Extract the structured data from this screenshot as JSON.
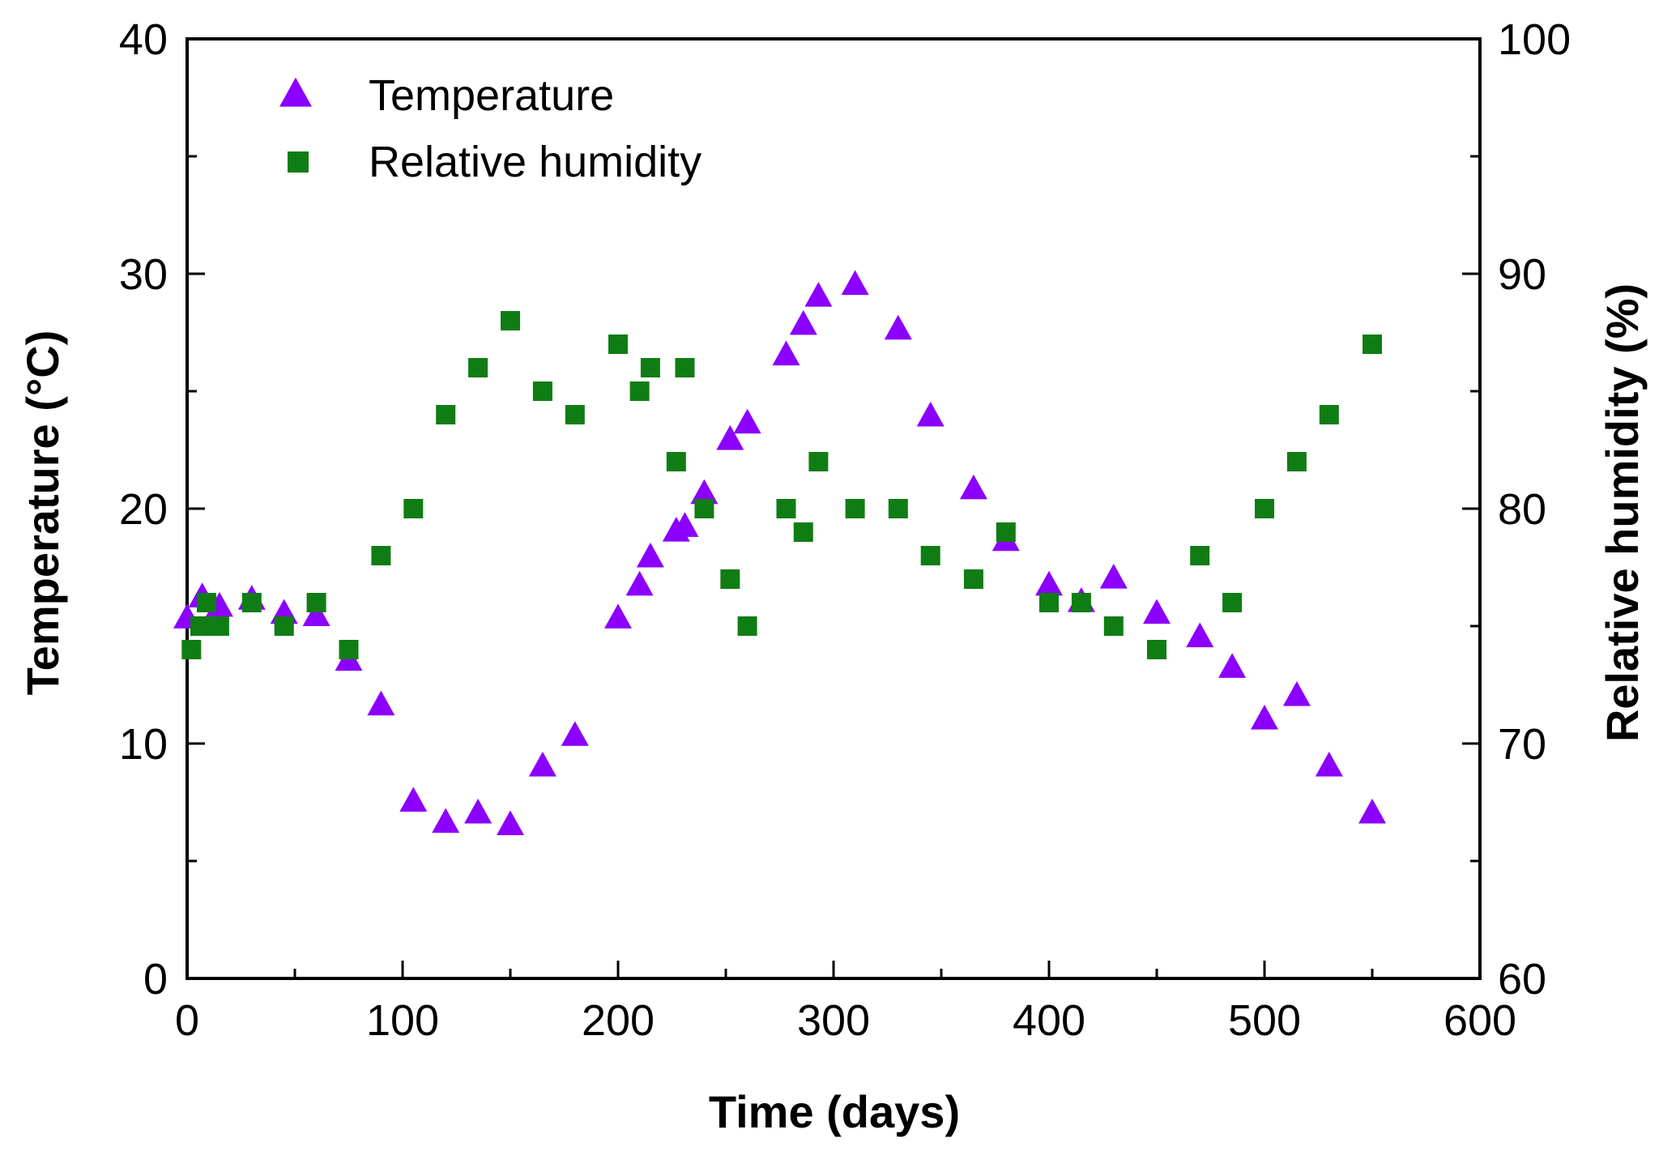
{
  "chart_data": {
    "type": "scatter",
    "title": "",
    "xlabel": "Time (days)",
    "ylabel": "Temperature (°C)",
    "y2label": "Relative humidity (%)",
    "xlim": [
      0,
      600
    ],
    "ylim": [
      0,
      40
    ],
    "y2lim": [
      60,
      100
    ],
    "x_ticks": [
      "0",
      "100",
      "200",
      "300",
      "400",
      "500",
      "600"
    ],
    "y_ticks": [
      "0",
      "10",
      "20",
      "30",
      "40"
    ],
    "y2_ticks": [
      "60",
      "70",
      "80",
      "90",
      "100"
    ],
    "grid": false,
    "legend_position": "top-left",
    "series": [
      {
        "name": "Temperature",
        "axis": "left",
        "marker": "triangle",
        "color": "#8B00FF",
        "x": [
          0,
          7,
          15,
          30,
          45,
          60,
          75,
          90,
          105,
          120,
          135,
          150,
          165,
          180,
          200,
          210,
          215,
          227,
          231,
          240,
          252,
          260,
          278,
          286,
          293,
          310,
          330,
          345,
          365,
          380,
          400,
          415,
          430,
          450,
          470,
          485,
          500,
          515,
          530,
          550
        ],
        "y": [
          15.3,
          16.2,
          15.8,
          16.1,
          15.5,
          15.4,
          13.5,
          11.6,
          7.5,
          6.6,
          7.0,
          6.5,
          9.0,
          10.3,
          15.3,
          16.7,
          17.9,
          19.0,
          19.2,
          20.6,
          22.9,
          23.6,
          26.5,
          27.8,
          29.0,
          29.5,
          27.6,
          23.9,
          20.8,
          18.6,
          16.7,
          16.0,
          17.0,
          15.5,
          14.5,
          13.2,
          11.0,
          12.0,
          9.0,
          7.0
        ]
      },
      {
        "name": "Relative humidity",
        "axis": "right",
        "marker": "square",
        "color": "#0F7D14",
        "x": [
          2,
          6,
          9,
          15,
          30,
          45,
          60,
          75,
          90,
          105,
          120,
          135,
          150,
          165,
          180,
          200,
          210,
          215,
          227,
          231,
          240,
          252,
          260,
          278,
          286,
          293,
          310,
          330,
          345,
          365,
          380,
          400,
          415,
          430,
          450,
          470,
          485,
          500,
          515,
          530,
          550
        ],
        "y": [
          74,
          75,
          76,
          75,
          76,
          75,
          76,
          74,
          78,
          80,
          84,
          86,
          88,
          85,
          84,
          87,
          85,
          86,
          82,
          86,
          80,
          77,
          75,
          80,
          79,
          82,
          80,
          80,
          78,
          77,
          79,
          76,
          76,
          75,
          74,
          78,
          76,
          80,
          82,
          84,
          87
        ]
      }
    ]
  }
}
